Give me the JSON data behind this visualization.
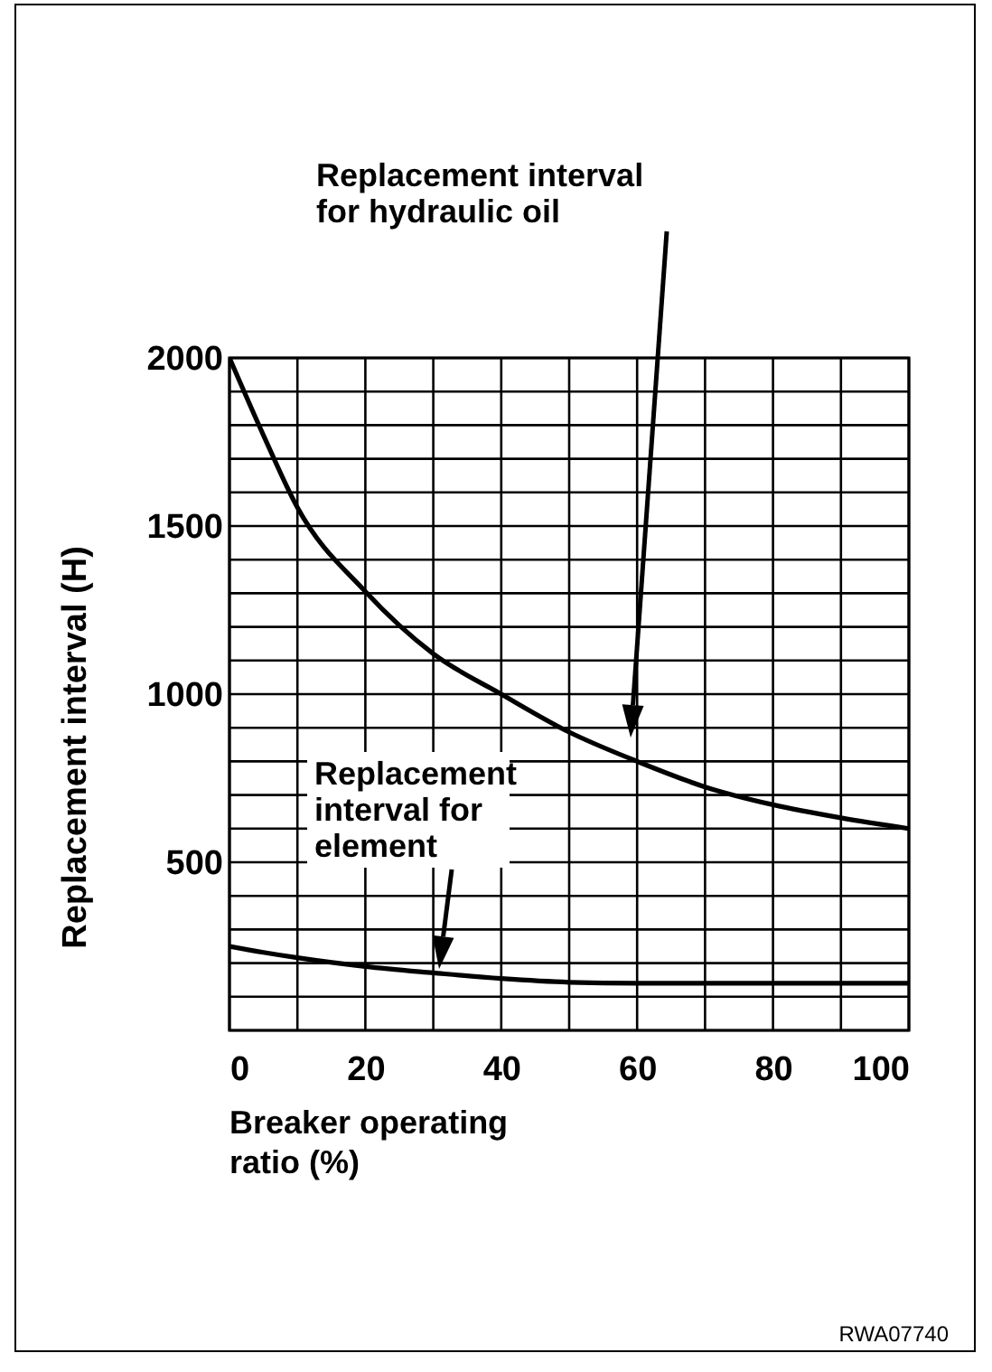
{
  "chart_data": {
    "type": "line",
    "xlabel": "Breaker operating ratio (%)",
    "ylabel": "Replacement interval (H)",
    "x": [
      0,
      5,
      10,
      20,
      30,
      40,
      50,
      60,
      70,
      80,
      90,
      100
    ],
    "series": [
      {
        "color": "#000000",
        "values": [
          2000,
          1770,
          1555,
          1305,
          1120,
          1000,
          887,
          800,
          724,
          671,
          632,
          600
        ]
      },
      {
        "color": "#000000",
        "values": [
          250,
          232,
          216,
          190,
          171,
          154,
          143,
          140,
          140,
          140,
          140,
          140
        ]
      }
    ],
    "xlim": [
      0,
      100
    ],
    "ylim": [
      0,
      2000
    ],
    "xticks": [
      0,
      {
        "value": 10,
        "label": null
      },
      20,
      {
        "value": 30,
        "label": null
      },
      40,
      {
        "value": 50,
        "label": null
      },
      60,
      {
        "value": 70,
        "label": null
      },
      80,
      {
        "value": 90,
        "label": null
      },
      100
    ],
    "yticks": [
      {
        "value": 0,
        "label": null
      },
      {
        "value": 100,
        "label": null
      },
      {
        "value": 200,
        "label": null
      },
      {
        "value": 300,
        "label": null
      },
      {
        "value": 400,
        "label": null
      },
      500,
      {
        "value": 600,
        "label": null
      },
      {
        "value": 700,
        "label": null
      },
      {
        "value": 800,
        "label": null
      },
      {
        "value": 900,
        "label": null
      },
      1000,
      {
        "value": 1100,
        "label": null
      },
      {
        "value": 1200,
        "label": null
      },
      {
        "value": 1300,
        "label": null
      },
      {
        "value": 1400,
        "label": null
      },
      1500,
      {
        "value": 1600,
        "label": null
      },
      {
        "value": 1700,
        "label": null
      },
      {
        "value": 1800,
        "label": null
      },
      {
        "value": 1900,
        "label": null
      },
      2000
    ],
    "grid": true,
    "marker": "none",
    "line_style": "solid",
    "annotations": [
      "Replacement interval for hydraulic oil",
      "Replacement interval for element",
      "RWA07740"
    ]
  }
}
